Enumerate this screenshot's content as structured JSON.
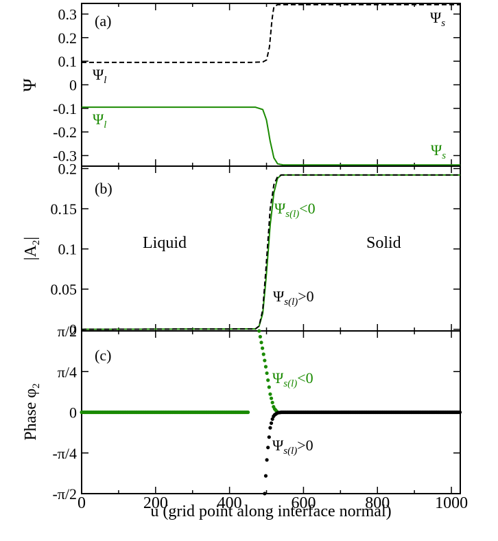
{
  "colors": {
    "green": "#1a8a00",
    "black": "#000000"
  },
  "xaxis": {
    "label": "u (grid point along interface normal)",
    "range": [
      0,
      1024
    ],
    "ticks": [
      0,
      200,
      400,
      600,
      800,
      1000
    ],
    "tick_labels": [
      "0",
      "200",
      "400",
      "600",
      "800",
      "1000"
    ]
  },
  "chart_data": [
    {
      "type": "line",
      "panel_label": "(a)",
      "ylabel": "Ψ",
      "ylim": [
        -0.345,
        0.345
      ],
      "yticks": [
        -0.3,
        -0.2,
        -0.1,
        0,
        0.1,
        0.2,
        0.3
      ],
      "ytick_labels": [
        "-0.3",
        "-0.2",
        "-0.1",
        "0",
        "0.1",
        "0.2",
        "0.3"
      ],
      "series": [
        {
          "style": "dashed",
          "color": "black",
          "x": [
            0,
            460,
            490,
            500,
            508,
            515,
            520,
            530,
            1024
          ],
          "y": [
            0.095,
            0.095,
            0.097,
            0.105,
            0.16,
            0.28,
            0.33,
            0.34,
            0.34
          ]
        },
        {
          "style": "solid",
          "color": "green",
          "x": [
            0,
            470,
            490,
            500,
            510,
            520,
            530,
            545,
            1024
          ],
          "y": [
            -0.095,
            -0.095,
            -0.105,
            -0.15,
            -0.24,
            -0.31,
            -0.335,
            -0.34,
            -0.34
          ]
        }
      ],
      "annotations": [
        {
          "base": "Ψ",
          "sub": "l",
          "color": "black"
        },
        {
          "base": "Ψ",
          "sub": "s",
          "color": "black"
        },
        {
          "base": "Ψ",
          "sub": "l",
          "color": "green"
        },
        {
          "base": "Ψ",
          "sub": "s",
          "color": "green"
        }
      ]
    },
    {
      "type": "line",
      "panel_label": "(b)",
      "ylabel": "|A",
      "ylabel_sub": "2",
      "ylabel_tail": "|",
      "ylim": [
        -0.002,
        0.203
      ],
      "yticks": [
        0,
        0.05,
        0.1,
        0.15,
        0.2
      ],
      "ytick_labels": [
        "0",
        "0.05",
        "0.1",
        "0.15",
        "0.2"
      ],
      "series": [
        {
          "style": "solid",
          "color": "green",
          "x": [
            0,
            470,
            480,
            490,
            500,
            510,
            520,
            530,
            540,
            1024
          ],
          "y": [
            0,
            0.0005,
            0.004,
            0.02,
            0.07,
            0.13,
            0.17,
            0.188,
            0.192,
            0.192
          ]
        },
        {
          "style": "dashed",
          "color": "black",
          "x": [
            0,
            470,
            480,
            490,
            500,
            510,
            520,
            530,
            540,
            1024
          ],
          "y": [
            0,
            0.0005,
            0.004,
            0.025,
            0.085,
            0.15,
            0.18,
            0.19,
            0.192,
            0.192
          ]
        }
      ],
      "annotations": [
        {
          "text": "Liquid"
        },
        {
          "text": "Solid"
        },
        {
          "base": "Ψ",
          "sub": "s(l)",
          "tail": "<0",
          "color": "green"
        },
        {
          "base": "Ψ",
          "sub": "s(l)",
          "tail": ">0",
          "color": "black"
        }
      ]
    },
    {
      "type": "scatter",
      "panel_label": "(c)",
      "ylabel": "Phase φ",
      "ylabel_sub": "2",
      "ylim": [
        -1.5708,
        1.5708
      ],
      "yticks": [
        -1.5708,
        -0.7854,
        0,
        0.7854,
        1.5708
      ],
      "ytick_labels": [
        "-π/2",
        "-π/4",
        "0",
        "π/4",
        "π/2"
      ],
      "series": [
        {
          "style": "markers",
          "color": "green",
          "x": [
            0,
            450,
            480,
            490,
            500,
            510,
            520,
            530
          ],
          "y": [
            0,
            0,
            1.57,
            1.2,
            0.8,
            0.35,
            0.08,
            0.0
          ]
        },
        {
          "style": "markers",
          "color": "black",
          "x": [
            495,
            500,
            505,
            510,
            515,
            520,
            530,
            540,
            1024
          ],
          "y": [
            -1.57,
            -1.0,
            -0.6,
            -0.3,
            -0.15,
            -0.06,
            -0.01,
            0,
            0
          ]
        }
      ],
      "annotations": [
        {
          "base": "Ψ",
          "sub": "s(l)",
          "tail": "<0",
          "color": "green"
        },
        {
          "base": "Ψ",
          "sub": "s(l)",
          "tail": ">0",
          "color": "black"
        }
      ]
    }
  ]
}
